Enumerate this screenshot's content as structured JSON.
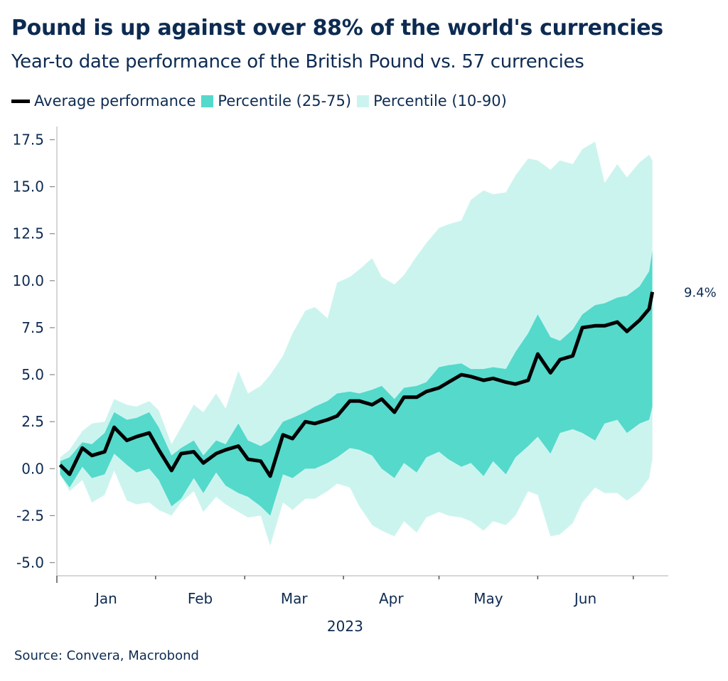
{
  "title": "Pound is up against over 88% of the world's currencies",
  "subtitle": "Year-to date performance of the British Pound vs. 57 currencies",
  "source": "Source: Convera, Macrobond",
  "colors": {
    "text": "#0d2b52",
    "average": "#000000",
    "p25_75": "#54d9cb",
    "p10_90": "#ccf4ef",
    "axis": "#c8c8c8"
  },
  "chart_data": {
    "type": "area",
    "title": "Pound is up against over 88% of the world's currencies",
    "subtitle": "Year-to date performance of the British Pound vs. 57 currencies",
    "xlabel": "2023",
    "ylabel": "",
    "ylim": [
      -5.7,
      18.2
    ],
    "xlim": [
      "2023-01-01",
      "2023-07-12"
    ],
    "grid": false,
    "legend_placement": "top-left",
    "y_ticks": [
      "17.5",
      "15.0",
      "12.5",
      "10.0",
      "7.5",
      "5.0",
      "2.5",
      "0.0",
      "-2.5",
      "-5.0"
    ],
    "y_tick_values": [
      17.5,
      15,
      12.5,
      10,
      7.5,
      5,
      2.5,
      0,
      -2.5,
      -5
    ],
    "x_month_ticks": [
      "2023-01-01",
      "2023-02-01",
      "2023-03-01",
      "2023-04-01",
      "2023-05-01",
      "2023-06-01",
      "2023-07-01"
    ],
    "x_labels": [
      "Jan",
      "Feb",
      "Mar",
      "Apr",
      "May",
      "Jun"
    ],
    "x_year_label": "2023",
    "end_label": "9.4%",
    "legend": [
      "Average performance",
      "Percentile (25-75)",
      "Percentile (10-90)"
    ],
    "dates": [
      "2023-01-02",
      "2023-01-05",
      "2023-01-09",
      "2023-01-12",
      "2023-01-16",
      "2023-01-19",
      "2023-01-23",
      "2023-01-26",
      "2023-01-30",
      "2023-02-02",
      "2023-02-06",
      "2023-02-09",
      "2023-02-13",
      "2023-02-16",
      "2023-02-20",
      "2023-02-23",
      "2023-02-27",
      "2023-03-02",
      "2023-03-06",
      "2023-03-09",
      "2023-03-13",
      "2023-03-16",
      "2023-03-20",
      "2023-03-23",
      "2023-03-27",
      "2023-03-30",
      "2023-04-03",
      "2023-04-06",
      "2023-04-10",
      "2023-04-13",
      "2023-04-17",
      "2023-04-20",
      "2023-04-24",
      "2023-04-27",
      "2023-05-01",
      "2023-05-04",
      "2023-05-08",
      "2023-05-11",
      "2023-05-15",
      "2023-05-18",
      "2023-05-22",
      "2023-05-25",
      "2023-05-29",
      "2023-06-01",
      "2023-06-05",
      "2023-06-08",
      "2023-06-12",
      "2023-06-15",
      "2023-06-19",
      "2023-06-22",
      "2023-06-26",
      "2023-06-29",
      "2023-07-03",
      "2023-07-06",
      "2023-07-07"
    ],
    "series": [
      {
        "name": "Average performance",
        "values": [
          0.2,
          -0.3,
          1.1,
          0.7,
          0.9,
          2.2,
          1.5,
          1.7,
          1.9,
          1.0,
          -0.1,
          0.8,
          0.9,
          0.3,
          0.8,
          1.0,
          1.2,
          0.5,
          0.4,
          -0.4,
          1.8,
          1.6,
          2.5,
          2.4,
          2.6,
          2.8,
          3.6,
          3.6,
          3.4,
          3.7,
          3.0,
          3.8,
          3.8,
          4.1,
          4.3,
          4.6,
          5.0,
          4.9,
          4.7,
          4.8,
          4.6,
          4.5,
          4.7,
          6.1,
          5.1,
          5.8,
          6.0,
          7.5,
          7.6,
          7.6,
          7.8,
          7.3,
          7.9,
          8.5,
          9.4
        ]
      },
      {
        "name": "Percentile (25-75)",
        "low": [
          -0.3,
          -1.0,
          0.1,
          -0.5,
          -0.3,
          0.8,
          0.2,
          -0.2,
          0.0,
          -0.6,
          -2.0,
          -1.6,
          -0.5,
          -1.3,
          -0.2,
          -0.9,
          -1.3,
          -1.5,
          -2.0,
          -2.5,
          -0.3,
          -0.5,
          0.0,
          0.0,
          0.3,
          0.6,
          1.1,
          1.0,
          0.7,
          0.0,
          -0.5,
          0.3,
          -0.2,
          0.6,
          0.9,
          0.5,
          0.1,
          0.3,
          -0.4,
          0.4,
          -0.3,
          0.6,
          1.2,
          1.7,
          0.8,
          1.9,
          2.1,
          1.9,
          1.5,
          2.4,
          2.6,
          1.9,
          2.4,
          2.6,
          3.3
        ],
        "high": [
          0.4,
          0.6,
          1.4,
          1.3,
          1.9,
          3.0,
          2.6,
          2.7,
          3.0,
          2.2,
          0.7,
          1.1,
          1.5,
          0.7,
          1.5,
          1.3,
          2.4,
          1.5,
          1.2,
          1.5,
          2.5,
          2.7,
          3.0,
          3.3,
          3.6,
          4.0,
          4.1,
          4.0,
          4.2,
          4.4,
          3.7,
          4.3,
          4.4,
          4.6,
          5.4,
          5.5,
          5.6,
          5.3,
          5.3,
          5.4,
          5.3,
          6.2,
          7.2,
          8.2,
          7.0,
          6.8,
          7.4,
          8.2,
          8.7,
          8.8,
          9.1,
          9.2,
          9.7,
          10.5,
          11.6
        ]
      },
      {
        "name": "Percentile (10-90)",
        "low": [
          -0.3,
          -1.2,
          -0.6,
          -1.8,
          -1.4,
          -0.1,
          -1.7,
          -1.9,
          -1.8,
          -2.2,
          -2.5,
          -1.8,
          -1.2,
          -2.3,
          -1.5,
          -1.9,
          -2.3,
          -2.6,
          -2.5,
          -4.1,
          -1.8,
          -2.2,
          -1.6,
          -1.6,
          -1.2,
          -0.8,
          -1.0,
          -2.0,
          -3.0,
          -3.3,
          -3.6,
          -2.8,
          -3.4,
          -2.6,
          -2.3,
          -2.5,
          -2.6,
          -2.8,
          -3.3,
          -2.8,
          -3.0,
          -2.5,
          -1.2,
          -1.4,
          -3.6,
          -3.5,
          -2.9,
          -1.8,
          -1.0,
          -1.3,
          -1.3,
          -1.7,
          -1.2,
          -0.5,
          0.5
        ],
        "high": [
          0.6,
          1.0,
          2.0,
          2.4,
          2.5,
          3.7,
          3.4,
          3.3,
          3.6,
          3.1,
          1.3,
          2.2,
          3.4,
          3.0,
          4.0,
          3.2,
          5.2,
          4.0,
          4.4,
          5.0,
          6.0,
          7.2,
          8.4,
          8.6,
          8.0,
          9.9,
          10.2,
          10.6,
          11.2,
          10.2,
          9.8,
          10.3,
          11.3,
          12.0,
          12.8,
          13.0,
          13.2,
          14.3,
          14.8,
          14.6,
          14.7,
          15.6,
          16.5,
          16.4,
          15.9,
          16.4,
          16.2,
          17.0,
          17.4,
          15.2,
          16.2,
          15.5,
          16.3,
          16.7,
          16.4
        ]
      }
    ]
  }
}
